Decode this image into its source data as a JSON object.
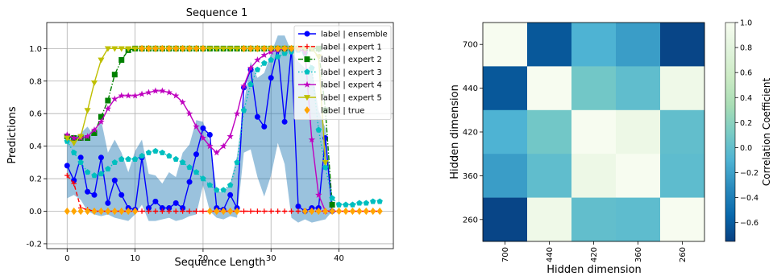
{
  "chart_data": [
    {
      "type": "line",
      "title": "Sequence 1",
      "xlabel": "Sequence Length",
      "ylabel": "Predictions",
      "xlim": [
        -3,
        48
      ],
      "ylim": [
        -0.23,
        1.16
      ],
      "xticks": [
        "0",
        "10",
        "20",
        "30",
        "40"
      ],
      "yticks": [
        "-0.2",
        "0.0",
        "0.2",
        "0.4",
        "0.6",
        "0.8",
        "1.0"
      ],
      "grid": true,
      "legend_position": "top-right",
      "uncertainty_band": {
        "x": [
          0,
          1,
          2,
          3,
          4,
          5,
          6,
          7,
          8,
          9,
          10,
          11,
          12,
          13,
          14,
          15,
          16,
          17,
          18,
          19,
          20,
          21,
          22,
          23,
          24,
          25,
          26,
          27,
          28,
          29,
          30,
          31,
          32,
          33,
          34,
          35,
          36,
          37,
          38,
          39
        ],
        "upper": [
          0.46,
          0.45,
          0.48,
          0.52,
          0.46,
          0.56,
          0.36,
          0.44,
          0.36,
          0.24,
          0.37,
          0.44,
          0.23,
          0.22,
          0.17,
          0.24,
          0.21,
          0.36,
          0.41,
          0.56,
          0.55,
          0.42,
          0.13,
          0.11,
          0.17,
          0.34,
          0.66,
          0.92,
          0.82,
          0.85,
          0.97,
          1.08,
          1.08,
          0.98,
          0.92,
          0.88,
          0.88,
          0.62,
          0.51,
          0.1
        ],
        "lower": [
          0.08,
          0.1,
          0.07,
          0.0,
          -0.02,
          -0.03,
          -0.02,
          -0.04,
          -0.05,
          -0.06,
          -0.02,
          0.04,
          -0.06,
          -0.06,
          -0.05,
          -0.04,
          -0.06,
          -0.05,
          -0.03,
          -0.02,
          0.16,
          0.0,
          -0.04,
          -0.05,
          -0.03,
          -0.04,
          0.36,
          0.38,
          0.21,
          0.09,
          0.22,
          0.42,
          0.29,
          -0.04,
          -0.07,
          -0.05,
          -0.07,
          -0.06,
          -0.05,
          0.0
        ]
      },
      "series": [
        {
          "name": "label | ensemble",
          "color": "#0000ff",
          "marker": "circle",
          "line": "solid",
          "x": [
            0,
            1,
            2,
            3,
            4,
            5,
            6,
            7,
            8,
            9,
            10,
            11,
            12,
            13,
            14,
            15,
            16,
            17,
            18,
            19,
            20,
            21,
            22,
            23,
            24,
            25,
            26,
            27,
            28,
            29,
            30,
            31,
            32,
            33,
            34,
            35,
            36,
            37,
            38,
            39
          ],
          "y": [
            0.28,
            0.19,
            0.33,
            0.12,
            0.1,
            0.33,
            0.05,
            0.19,
            0.1,
            0.02,
            0.01,
            0.33,
            0.02,
            0.06,
            0.02,
            0.02,
            0.05,
            0.02,
            0.18,
            0.35,
            0.51,
            0.47,
            0.02,
            0.01,
            0.1,
            0.02,
            0.76,
            0.87,
            0.58,
            0.52,
            0.82,
            1.0,
            0.55,
            1.0,
            0.03,
            0.0,
            0.02,
            0.02,
            0.45,
            0.0
          ]
        },
        {
          "name": "label | expert 1",
          "color": "#ff0000",
          "marker": "plus",
          "line": "dashed",
          "x": [
            0,
            1,
            2,
            3,
            4,
            5,
            6,
            7,
            8,
            9,
            10,
            11,
            12,
            13,
            14,
            15,
            16,
            17,
            18,
            19,
            20,
            21,
            22,
            23,
            24,
            25,
            26,
            27,
            28,
            29,
            30,
            31,
            32,
            33,
            34,
            35,
            36,
            37,
            38,
            39,
            40,
            41,
            42,
            43,
            44,
            45,
            46
          ],
          "y": [
            0.22,
            0.17,
            0.02,
            0.01,
            0.0,
            0.0,
            0.0,
            0.0,
            0.0,
            0.0,
            0.0,
            0.0,
            0.0,
            0.0,
            0.0,
            0.0,
            0.0,
            0.0,
            0.0,
            0.0,
            0.0,
            0.0,
            0.0,
            0.0,
            0.0,
            0.0,
            0.0,
            0.0,
            0.0,
            0.0,
            0.0,
            0.0,
            0.0,
            0.0,
            0.0,
            0.0,
            0.0,
            0.0,
            0.0,
            0.0,
            0.0,
            0.0,
            0.0,
            0.0,
            0.0,
            0.0,
            0.0
          ]
        },
        {
          "name": "label | expert 2",
          "color": "#008000",
          "marker": "square",
          "line": "dashdot",
          "x": [
            0,
            1,
            2,
            3,
            4,
            5,
            6,
            7,
            8,
            9,
            10,
            11,
            12,
            13,
            14,
            15,
            16,
            17,
            18,
            19,
            20,
            21,
            22,
            23,
            24,
            25,
            26,
            27,
            28,
            29,
            30,
            31,
            32,
            33,
            34,
            35,
            36,
            37,
            38,
            39
          ],
          "y": [
            0.46,
            0.45,
            0.45,
            0.45,
            0.48,
            0.58,
            0.68,
            0.84,
            0.93,
            0.99,
            1.0,
            1.0,
            1.0,
            1.0,
            1.0,
            1.0,
            1.0,
            1.0,
            1.0,
            1.0,
            1.0,
            1.0,
            1.0,
            1.0,
            1.0,
            1.0,
            1.0,
            1.0,
            1.0,
            1.0,
            1.0,
            1.0,
            1.0,
            1.0,
            1.0,
            1.0,
            1.0,
            1.0,
            0.62,
            0.04
          ]
        },
        {
          "name": "label | expert 3",
          "color": "#00bfbf",
          "marker": "pentagon",
          "line": "dotted",
          "x": [
            0,
            1,
            2,
            3,
            4,
            5,
            6,
            7,
            8,
            9,
            10,
            11,
            12,
            13,
            14,
            15,
            16,
            17,
            18,
            19,
            20,
            21,
            22,
            23,
            24,
            25,
            26,
            27,
            28,
            29,
            30,
            31,
            32,
            33,
            34,
            35,
            36,
            37,
            38,
            39,
            40,
            41,
            42,
            43,
            44,
            45,
            46
          ],
          "y": [
            0.43,
            0.36,
            0.3,
            0.24,
            0.22,
            0.23,
            0.26,
            0.3,
            0.32,
            0.32,
            0.32,
            0.34,
            0.36,
            0.37,
            0.36,
            0.34,
            0.32,
            0.3,
            0.27,
            0.24,
            0.2,
            0.16,
            0.13,
            0.13,
            0.16,
            0.3,
            0.62,
            0.78,
            0.87,
            0.91,
            0.93,
            0.95,
            0.97,
            0.98,
            0.99,
            0.97,
            0.88,
            0.5,
            0.27,
            0.08,
            0.04,
            0.04,
            0.04,
            0.05,
            0.05,
            0.06,
            0.06
          ]
        },
        {
          "name": "label | expert 4",
          "color": "#bf00bf",
          "marker": "star",
          "line": "solid",
          "x": [
            0,
            1,
            2,
            3,
            4,
            5,
            6,
            7,
            8,
            9,
            10,
            11,
            12,
            13,
            14,
            15,
            16,
            17,
            18,
            19,
            20,
            21,
            22,
            23,
            24,
            25,
            26,
            27,
            28,
            29,
            30,
            31,
            32,
            33,
            34,
            35,
            36,
            37,
            38
          ],
          "y": [
            0.47,
            0.45,
            0.45,
            0.46,
            0.5,
            0.55,
            0.63,
            0.69,
            0.71,
            0.71,
            0.71,
            0.72,
            0.73,
            0.74,
            0.74,
            0.73,
            0.71,
            0.67,
            0.6,
            0.52,
            0.45,
            0.4,
            0.36,
            0.4,
            0.46,
            0.6,
            0.77,
            0.88,
            0.93,
            0.96,
            0.98,
            0.99,
            1.0,
            1.0,
            1.0,
            0.98,
            0.44,
            0.1,
            0.0
          ]
        },
        {
          "name": "label | expert 5",
          "color": "#bfbf00",
          "marker": "triangle-down",
          "line": "solid",
          "x": [
            0,
            1,
            2,
            3,
            4,
            5,
            6,
            7,
            8,
            9,
            10,
            11,
            12,
            13,
            14,
            15,
            16,
            17,
            18,
            19,
            20,
            21,
            22,
            23,
            24,
            25,
            26,
            27,
            28,
            29,
            30,
            31,
            32,
            33,
            34,
            35,
            36,
            37,
            38
          ],
          "y": [
            0.45,
            0.42,
            0.46,
            0.62,
            0.79,
            0.93,
            1.0,
            1.0,
            1.0,
            1.0,
            1.0,
            1.0,
            1.0,
            1.0,
            1.0,
            1.0,
            1.0,
            1.0,
            1.0,
            1.0,
            1.0,
            1.0,
            1.0,
            1.0,
            1.0,
            1.0,
            1.0,
            1.0,
            1.0,
            1.0,
            1.0,
            1.0,
            1.0,
            1.0,
            1.0,
            1.0,
            1.0,
            0.95,
            0.3
          ]
        },
        {
          "name": "label | true",
          "color": "#ffa500",
          "marker": "diamond",
          "line": "none",
          "x": [
            0,
            1,
            2,
            3,
            4,
            5,
            6,
            7,
            8,
            9,
            10,
            11,
            12,
            13,
            14,
            15,
            16,
            17,
            18,
            19,
            20,
            21,
            22,
            23,
            24,
            25,
            26,
            27,
            28,
            29,
            30,
            31,
            32,
            33,
            34,
            35,
            36,
            37,
            38,
            39,
            40,
            41,
            42,
            43,
            44,
            45,
            46
          ],
          "y": [
            0,
            0,
            0,
            0,
            0,
            0,
            0,
            0,
            0,
            0,
            0,
            1,
            1,
            1,
            1,
            1,
            1,
            1,
            1,
            1,
            1,
            0,
            0,
            0,
            0,
            0,
            1,
            1,
            1,
            1,
            1,
            1,
            1,
            1,
            1,
            0,
            0,
            0,
            0,
            0,
            0,
            0,
            0,
            0,
            0,
            0,
            0
          ]
        }
      ]
    },
    {
      "type": "heatmap",
      "xlabel": "Hidden dimension",
      "ylabel": "Hidden dimension",
      "xticks": [
        "700",
        "440",
        "420",
        "360",
        "260"
      ],
      "yticks": [
        "700",
        "440",
        "420",
        "360",
        "260"
      ],
      "colormap": "GnBu_r",
      "values": [
        [
          1.0,
          -0.62,
          -0.1,
          -0.22,
          -0.72
        ],
        [
          -0.62,
          1.0,
          0.08,
          -0.01,
          0.92
        ],
        [
          -0.1,
          0.08,
          1.0,
          0.9,
          0.0
        ],
        [
          -0.22,
          -0.01,
          0.9,
          1.0,
          -0.02
        ],
        [
          -0.72,
          0.92,
          0.0,
          -0.02,
          1.0
        ]
      ],
      "colorbar": {
        "label": "Correlation Coefficient",
        "ticks": [
          "1.0",
          "0.8",
          "0.6",
          "0.4",
          "0.2",
          "0.0",
          "−0.2",
          "−0.4",
          "−0.6"
        ],
        "range": [
          -0.75,
          1.0
        ]
      }
    }
  ]
}
